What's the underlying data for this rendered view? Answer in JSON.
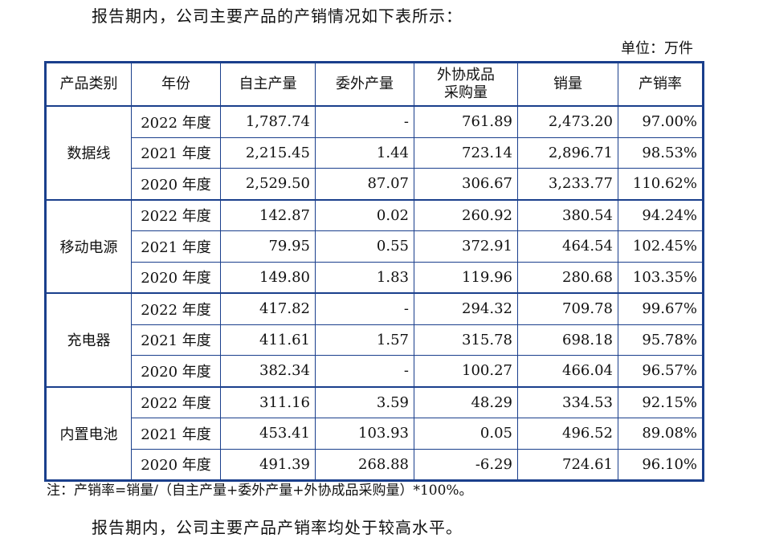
{
  "intro": "报告期内，公司主要产品的产销情况如下表所示：",
  "unit": "单位：万件",
  "table": {
    "headers": [
      "产品类别",
      "年份",
      "自主产量",
      "委外产量",
      "外协成品采购量",
      "销量",
      "产销率"
    ],
    "header_buy_line1": "外协成品",
    "header_buy_line2": "采购量",
    "groups": [
      {
        "category": "数据线",
        "rows": [
          [
            "2022 年度",
            "1,787.74",
            "-",
            "761.89",
            "2,473.20",
            "97.00%"
          ],
          [
            "2021 年度",
            "2,215.45",
            "1.44",
            "723.14",
            "2,896.71",
            "98.53%"
          ],
          [
            "2020 年度",
            "2,529.50",
            "87.07",
            "306.67",
            "3,233.77",
            "110.62%"
          ]
        ]
      },
      {
        "category": "移动电源",
        "rows": [
          [
            "2022 年度",
            "142.87",
            "0.02",
            "260.92",
            "380.54",
            "94.24%"
          ],
          [
            "2021 年度",
            "79.95",
            "0.55",
            "372.91",
            "464.54",
            "102.45%"
          ],
          [
            "2020 年度",
            "149.80",
            "1.83",
            "119.96",
            "280.68",
            "103.35%"
          ]
        ]
      },
      {
        "category": "充电器",
        "rows": [
          [
            "2022 年度",
            "417.82",
            "-",
            "294.32",
            "709.78",
            "99.67%"
          ],
          [
            "2021 年度",
            "411.61",
            "1.57",
            "315.78",
            "698.18",
            "95.78%"
          ],
          [
            "2020 年度",
            "382.34",
            "-",
            "100.27",
            "466.04",
            "96.57%"
          ]
        ]
      },
      {
        "category": "内置电池",
        "rows": [
          [
            "2022 年度",
            "311.16",
            "3.59",
            "48.29",
            "334.53",
            "92.15%"
          ],
          [
            "2021 年度",
            "453.41",
            "103.93",
            "0.05",
            "496.52",
            "89.08%"
          ],
          [
            "2020 年度",
            "491.39",
            "268.88",
            "-6.29",
            "724.61",
            "96.10%"
          ]
        ]
      }
    ]
  },
  "note": "注：产销率=销量/（自主产量+委外产量+外协成品采购量）*100%。",
  "conclusion": "报告期内，公司主要产品产销率均处于较高水平。"
}
